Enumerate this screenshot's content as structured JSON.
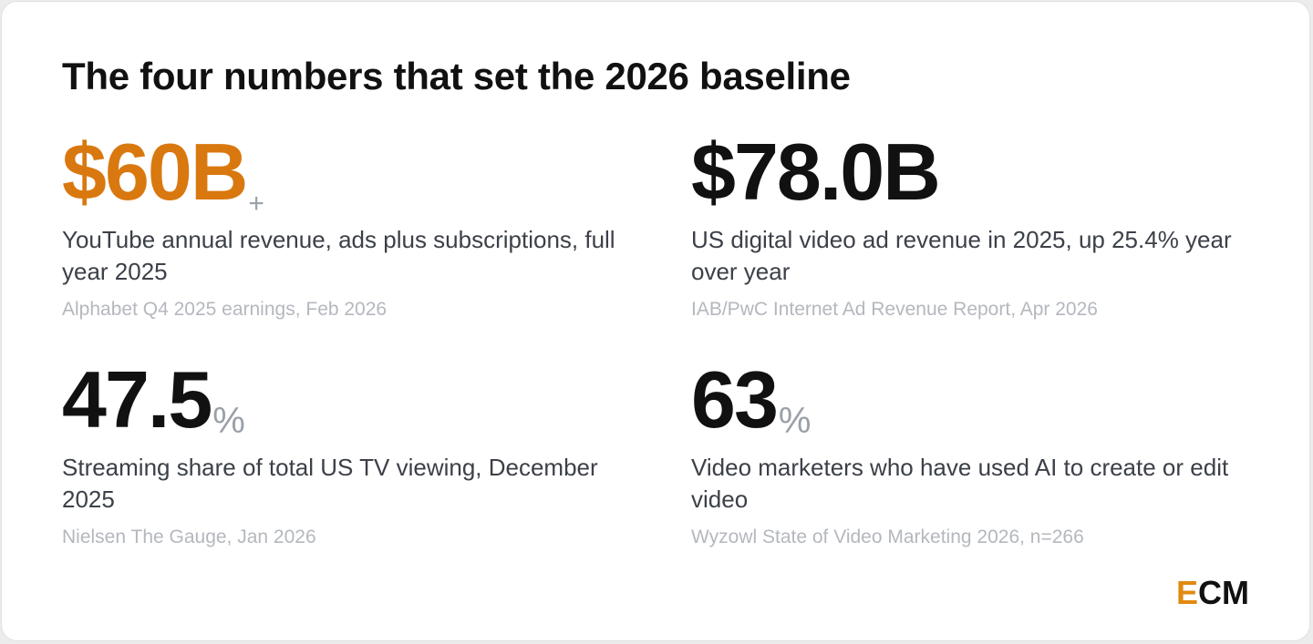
{
  "title": "The four numbers that set the 2026 baseline",
  "stats": [
    {
      "value": "$60B",
      "suffix": "+",
      "description": "YouTube annual revenue, ads plus subscriptions, full year 2025",
      "source": "Alphabet Q4 2025 earnings, Feb 2026"
    },
    {
      "value": "$78.0B",
      "suffix": "",
      "description": "US digital video ad revenue in 2025, up 25.4% year over year",
      "source": "IAB/PwC Internet Ad Revenue Report, Apr 2026"
    },
    {
      "value": "47.5",
      "suffix": "%",
      "description": "Streaming share of total US TV viewing, December 2025",
      "source": "Nielsen The Gauge, Jan 2026"
    },
    {
      "value": "63",
      "suffix": "%",
      "description": "Video marketers who have used AI to create or edit video",
      "source": "Wyzowl State of Video Marketing 2026, n=266"
    }
  ],
  "logo": {
    "letter_accent": "E",
    "letters_rest": "CM"
  },
  "colors": {
    "accent": "#d9780f",
    "text": "#111111",
    "muted": "#9aa0a8"
  }
}
